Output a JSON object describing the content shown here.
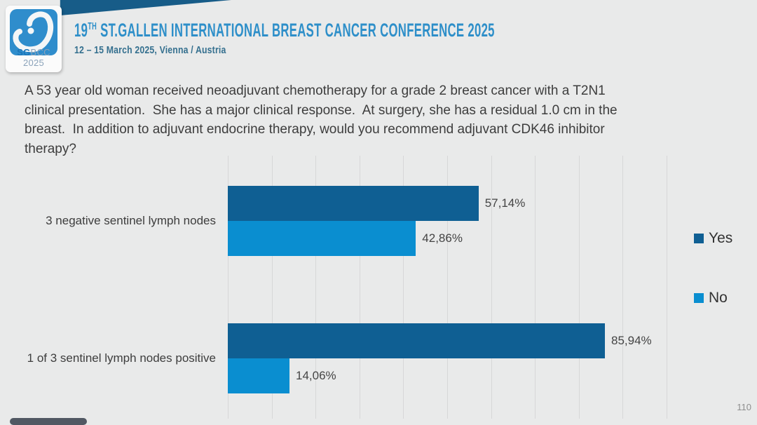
{
  "header": {
    "logo": {
      "sg": "SG",
      "rest": "BCC 2025"
    },
    "title": {
      "prefix": "19",
      "sup": "TH",
      "rest": " ST.GALLEN INTERNATIONAL BREAST CANCER CONFERENCE 2025"
    },
    "subtitle": "12 – 15 March 2025, Vienna / Austria"
  },
  "question": {
    "lines": [
      "A 53 year old woman received neoadjuvant chemotherapy for a grade 2 breast cancer with a T2N1",
      "clinical presentation.  She has a major clinical response.  At surgery, she has a residual 1.0 cm in the",
      "breast.  In addition to adjuvant endocrine therapy, would you recommend adjuvant CDK46 inhibitor",
      "therapy?"
    ]
  },
  "chart_data": {
    "type": "bar",
    "orientation": "horizontal",
    "title": "",
    "categories": [
      "3 negative sentinel lymph nodes",
      "1 of 3 sentinel lymph nodes positive"
    ],
    "series": [
      {
        "name": "Yes",
        "color": "#0f5f93",
        "values": [
          57.14,
          85.94
        ],
        "labels": [
          "57,14%",
          "85,94%"
        ]
      },
      {
        "name": "No",
        "color": "#0a8ed0",
        "values": [
          42.86,
          14.06
        ],
        "labels": [
          "42,86%",
          "14,06%"
        ]
      }
    ],
    "xlim": [
      0,
      100
    ],
    "gridline_step": 10,
    "grid": "vertical",
    "legend_position": "right",
    "value_label_format": "comma-decimal percent"
  },
  "footer": {
    "page_number": "110"
  },
  "colors": {
    "background": "#e9eaea",
    "wedge": "#175c88",
    "logo_square": "#2f8dcc",
    "title_blue": "#2e8fc9",
    "subtitle_blue": "#35708f",
    "gridline": "#d7d7d8",
    "text_dark": "#3d3d3d"
  }
}
